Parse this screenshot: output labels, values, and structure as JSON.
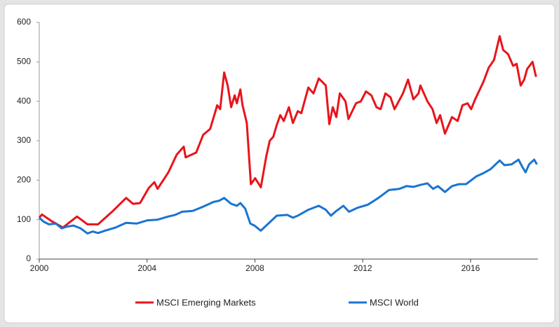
{
  "chart_data": {
    "type": "line",
    "xlim": [
      2000,
      2018.5
    ],
    "xticks": [
      2000,
      2004,
      2008,
      2012,
      2016
    ],
    "ylim": [
      0,
      600
    ],
    "yticks": [
      0,
      100,
      200,
      300,
      400,
      500,
      600
    ],
    "grid": false,
    "legend": "bottom",
    "series": [
      {
        "name": "MSCI Emerging Markets",
        "color": "#e8141b",
        "x": [
          2000,
          2000.1,
          2000.44,
          2000.88,
          2001.4,
          2001.79,
          2002.18,
          2002.7,
          2003.22,
          2003.48,
          2003.74,
          2004.06,
          2004.27,
          2004.39,
          2004.79,
          2005.1,
          2005.36,
          2005.43,
          2005.82,
          2006.08,
          2006.34,
          2006.6,
          2006.71,
          2006.86,
          2006.99,
          2007.12,
          2007.25,
          2007.33,
          2007.46,
          2007.54,
          2007.7,
          2007.85,
          2008.01,
          2008.22,
          2008.42,
          2008.55,
          2008.68,
          2008.81,
          2008.94,
          2009.07,
          2009.26,
          2009.41,
          2009.59,
          2009.72,
          2009.98,
          2010.17,
          2010.37,
          2010.63,
          2010.76,
          2010.89,
          2011.02,
          2011.15,
          2011.36,
          2011.47,
          2011.75,
          2011.93,
          2012.12,
          2012.32,
          2012.51,
          2012.66,
          2012.84,
          2013.03,
          2013.18,
          2013.49,
          2013.68,
          2013.88,
          2014.07,
          2014.14,
          2014.4,
          2014.59,
          2014.74,
          2014.87,
          2015.05,
          2015.31,
          2015.52,
          2015.7,
          2015.89,
          2016.02,
          2016.17,
          2016.48,
          2016.67,
          2016.87,
          2017.08,
          2017.21,
          2017.39,
          2017.58,
          2017.71,
          2017.86,
          2017.99,
          2018.1,
          2018.3,
          2018.43
        ],
        "values": [
          105,
          113,
          97,
          80,
          108,
          88,
          88,
          120,
          155,
          140,
          142,
          180,
          195,
          178,
          220,
          265,
          285,
          258,
          270,
          315,
          330,
          390,
          380,
          473,
          440,
          385,
          415,
          395,
          430,
          390,
          345,
          190,
          205,
          182,
          260,
          300,
          310,
          340,
          365,
          350,
          385,
          345,
          375,
          370,
          435,
          420,
          458,
          440,
          342,
          385,
          360,
          420,
          400,
          355,
          395,
          400,
          425,
          415,
          385,
          380,
          420,
          410,
          380,
          420,
          455,
          405,
          420,
          440,
          400,
          380,
          345,
          365,
          318,
          360,
          350,
          390,
          395,
          380,
          405,
          450,
          485,
          505,
          565,
          530,
          520,
          490,
          495,
          440,
          455,
          482,
          500,
          462
        ]
      },
      {
        "name": "MSCI World",
        "color": "#1a74d2",
        "x": [
          2000,
          2000.16,
          2000.36,
          2000.62,
          2000.83,
          2001.01,
          2001.27,
          2001.53,
          2001.79,
          2001.98,
          2002.18,
          2002.44,
          2002.83,
          2003.22,
          2003.61,
          2004.0,
          2004.39,
          2004.79,
          2005.04,
          2005.3,
          2005.69,
          2006.08,
          2006.47,
          2006.68,
          2006.86,
          2007.12,
          2007.33,
          2007.46,
          2007.64,
          2007.83,
          2007.98,
          2008.22,
          2008.42,
          2008.81,
          2009.2,
          2009.41,
          2009.59,
          2009.98,
          2010.37,
          2010.63,
          2010.82,
          2011.02,
          2011.28,
          2011.49,
          2011.8,
          2012.19,
          2012.58,
          2012.97,
          2013.36,
          2013.62,
          2013.88,
          2014.14,
          2014.4,
          2014.61,
          2014.79,
          2015.05,
          2015.31,
          2015.57,
          2015.83,
          2016.22,
          2016.48,
          2016.74,
          2017.08,
          2017.26,
          2017.52,
          2017.78,
          2017.91,
          2018.04,
          2018.17,
          2018.36,
          2018.46
        ],
        "values": [
          105,
          95,
          88,
          90,
          78,
          82,
          85,
          78,
          65,
          70,
          66,
          72,
          80,
          92,
          90,
          98,
          100,
          108,
          112,
          120,
          122,
          133,
          145,
          148,
          155,
          140,
          135,
          142,
          128,
          90,
          85,
          72,
          85,
          110,
          112,
          105,
          110,
          125,
          135,
          125,
          110,
          122,
          135,
          120,
          130,
          138,
          155,
          175,
          178,
          185,
          183,
          188,
          192,
          178,
          185,
          170,
          185,
          190,
          190,
          210,
          218,
          228,
          250,
          238,
          240,
          252,
          235,
          220,
          240,
          252,
          240
        ]
      }
    ]
  }
}
